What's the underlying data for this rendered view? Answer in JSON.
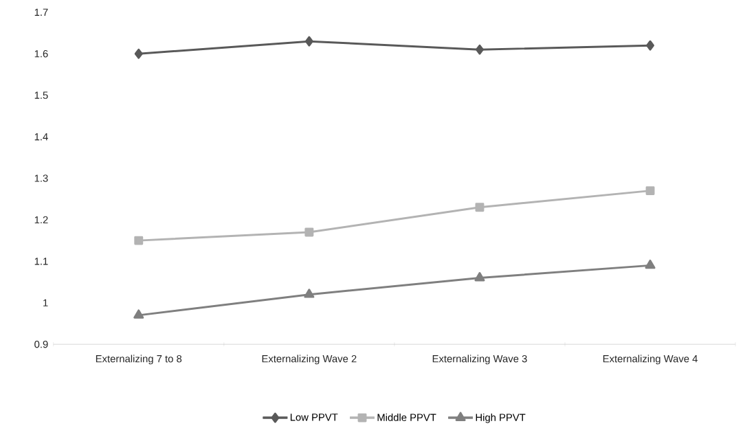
{
  "chart_data": {
    "type": "line",
    "categories": [
      "Externalizing 7 to 8",
      "Externalizing Wave 2",
      "Externalizing Wave 3",
      "Externalizing Wave 4"
    ],
    "series": [
      {
        "name": "Low PPVT",
        "color": "#595959",
        "marker": "diamond",
        "values": [
          1.6,
          1.63,
          1.61,
          1.62
        ]
      },
      {
        "name": "Middle PPVT",
        "color": "#b3b3b3",
        "marker": "square",
        "values": [
          1.15,
          1.17,
          1.23,
          1.27
        ]
      },
      {
        "name": "High PPVT",
        "color": "#7f7f7f",
        "marker": "triangle",
        "values": [
          0.97,
          1.02,
          1.06,
          1.09
        ]
      }
    ],
    "ylim": [
      0.9,
      1.7
    ],
    "yticks": [
      0.9,
      1,
      1.1,
      1.2,
      1.3,
      1.4,
      1.5,
      1.6,
      1.7
    ],
    "grid": false,
    "legend": "bottom",
    "line_style": "solid"
  }
}
